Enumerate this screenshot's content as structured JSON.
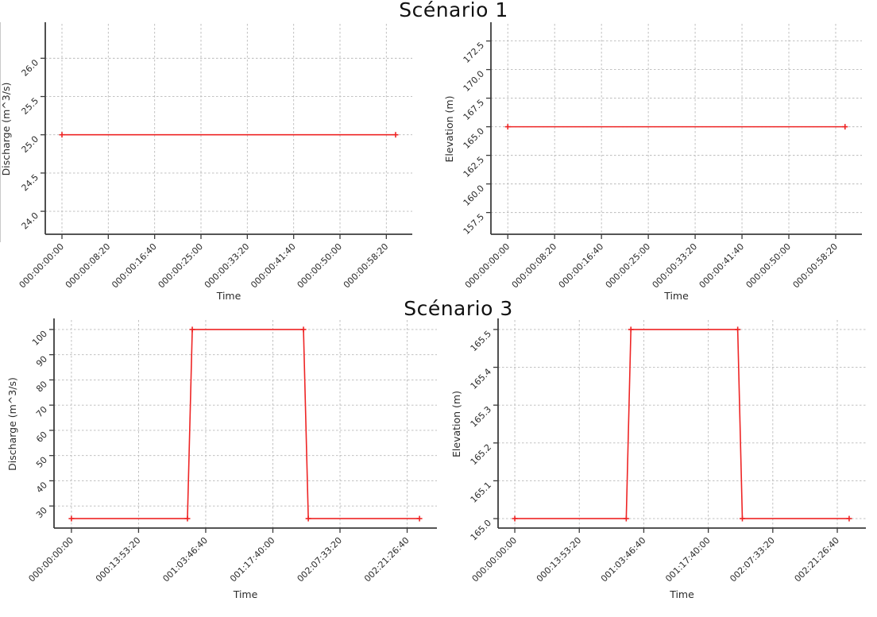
{
  "titles": {
    "row1": "Scénario 1",
    "row2": "Scénario 3"
  },
  "style": {
    "line_color": "#ee2525",
    "grid_color": "#b9b9b9",
    "spine_color": "#3c3c3c",
    "text_color": "#2b2b2b",
    "background": "#ffffff"
  },
  "chart_data": [
    {
      "type": "line",
      "name": "scenario1-discharge",
      "row_title": "Scénario 1",
      "xlabel": "Time",
      "ylabel": "Discharge (m^3/s)",
      "x": [
        0,
        3600
      ],
      "y": [
        25.0,
        25.0
      ],
      "x_tick_seconds": [
        0,
        500,
        1000,
        1500,
        2000,
        2500,
        3000,
        3500
      ],
      "x_tick_labels": [
        "000:00:00:00",
        "000:00:08:20",
        "000:00:16:40",
        "000:00:25:00",
        "000:00:33:20",
        "000:00:41:40",
        "000:00:50:00",
        "000:00:58:20"
      ],
      "y_tick_values": [
        24.0,
        24.5,
        25.0,
        25.5,
        26.0
      ],
      "y_tick_labels": [
        "24.0",
        "24.5",
        "25.0",
        "25.5",
        "26.0"
      ],
      "xlim": [
        -180,
        3780
      ],
      "ylim": [
        23.7,
        26.45
      ],
      "grid": true,
      "legend": null,
      "marker": "plus"
    },
    {
      "type": "line",
      "name": "scenario1-elevation",
      "row_title": "Scénario 1",
      "xlabel": "Time",
      "ylabel": "Elevation (m)",
      "x": [
        0,
        3600
      ],
      "y": [
        165.0,
        165.0
      ],
      "x_tick_seconds": [
        0,
        500,
        1000,
        1500,
        2000,
        2500,
        3000,
        3500
      ],
      "x_tick_labels": [
        "000:00:00:00",
        "000:00:08:20",
        "000:00:16:40",
        "000:00:25:00",
        "000:00:33:20",
        "000:00:41:40",
        "000:00:50:00",
        "000:00:58:20"
      ],
      "y_tick_values": [
        157.5,
        160.0,
        162.5,
        165.0,
        167.5,
        170.0,
        172.5
      ],
      "y_tick_labels": [
        "157.5",
        "160.0",
        "162.5",
        "165.0",
        "167.5",
        "170.0",
        "172.5"
      ],
      "xlim": [
        -180,
        3780
      ],
      "ylim": [
        155.6,
        174.0
      ],
      "grid": true,
      "legend": null,
      "marker": "plus"
    },
    {
      "type": "line",
      "name": "scenario3-discharge",
      "row_title": "Scénario 3",
      "xlabel": "Time",
      "ylabel": "Discharge (m^3/s)",
      "x": [
        0,
        86400,
        90000,
        172800,
        176400,
        259200
      ],
      "y": [
        25,
        25,
        100,
        100,
        25,
        25
      ],
      "x_tick_seconds": [
        0,
        50000,
        100000,
        150000,
        200000,
        250000
      ],
      "x_tick_labels": [
        "000:00:00:00",
        "000:13:53:20",
        "001:03:46:40",
        "001:17:40:00",
        "002:07:33:20",
        "002:21:26:40"
      ],
      "y_tick_values": [
        30,
        40,
        50,
        60,
        70,
        80,
        90,
        100
      ],
      "y_tick_labels": [
        "30",
        "40",
        "50",
        "60",
        "70",
        "80",
        "90",
        "100"
      ],
      "xlim": [
        -12960,
        272160
      ],
      "ylim": [
        21.25,
        103.75
      ],
      "grid": true,
      "legend": null,
      "marker": "plus"
    },
    {
      "type": "line",
      "name": "scenario3-elevation",
      "row_title": "Scénario 3",
      "xlabel": "Time",
      "ylabel": "Elevation (m)",
      "x": [
        0,
        86400,
        90000,
        172800,
        176400,
        259200
      ],
      "y": [
        165.0,
        165.0,
        165.5,
        165.5,
        165.0,
        165.0
      ],
      "x_tick_seconds": [
        0,
        50000,
        100000,
        150000,
        200000,
        250000
      ],
      "x_tick_labels": [
        "000:00:00:00",
        "000:13:53:20",
        "001:03:46:40",
        "001:17:40:00",
        "002:07:33:20",
        "002:21:26:40"
      ],
      "y_tick_values": [
        165.0,
        165.1,
        165.2,
        165.3,
        165.4,
        165.5
      ],
      "y_tick_labels": [
        "165.0",
        "165.1",
        "165.2",
        "165.3",
        "165.4",
        "165.5"
      ],
      "xlim": [
        -12960,
        272160
      ],
      "ylim": [
        164.975,
        165.525
      ],
      "grid": true,
      "legend": null,
      "marker": "plus"
    }
  ]
}
